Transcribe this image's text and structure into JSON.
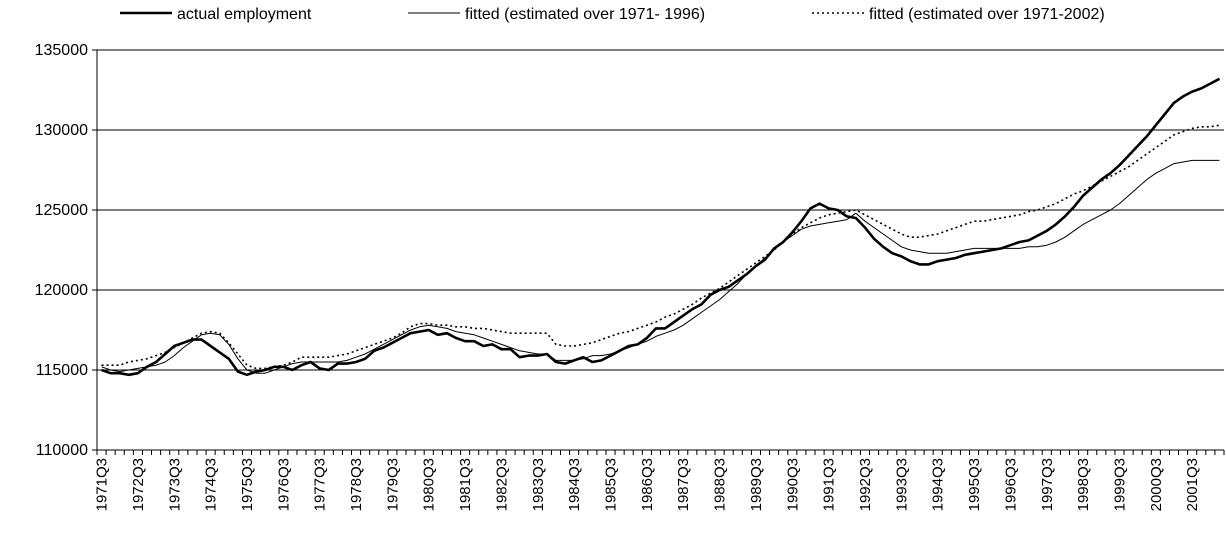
{
  "chart_data": {
    "type": "line",
    "categories": [
      "1971Q3",
      null,
      null,
      null,
      "1972Q3",
      null,
      null,
      null,
      "1973Q3",
      null,
      null,
      null,
      "1974Q3",
      null,
      null,
      null,
      "1975Q3",
      null,
      null,
      null,
      "1976Q3",
      null,
      null,
      null,
      "1977Q3",
      null,
      null,
      null,
      "1978Q3",
      null,
      null,
      null,
      "1979Q3",
      null,
      null,
      null,
      "1980Q3",
      null,
      null,
      null,
      "1981Q3",
      null,
      null,
      null,
      "1982Q3",
      null,
      null,
      null,
      "1983Q3",
      null,
      null,
      null,
      "1984Q3",
      null,
      null,
      null,
      "1985Q3",
      null,
      null,
      null,
      "1986Q3",
      null,
      null,
      null,
      "1987Q3",
      null,
      null,
      null,
      "1988Q3",
      null,
      null,
      null,
      "1989Q3",
      null,
      null,
      null,
      "1990Q3",
      null,
      null,
      null,
      "1991Q3",
      null,
      null,
      null,
      "1992Q3",
      null,
      null,
      null,
      "1993Q3",
      null,
      null,
      null,
      "1994Q3",
      null,
      null,
      null,
      "1995Q3",
      null,
      null,
      null,
      "1996Q3",
      null,
      null,
      null,
      "1997Q3",
      null,
      null,
      null,
      "1998Q3",
      null,
      null,
      null,
      "1999Q3",
      null,
      null,
      null,
      "2000Q3",
      null,
      null,
      null,
      "2001Q3",
      null,
      null,
      null
    ],
    "series": [
      {
        "name": "actual employment",
        "color": "#000000",
        "style": "thick",
        "values": [
          115000,
          114800,
          114800,
          114700,
          114800,
          115200,
          115500,
          116000,
          116500,
          116700,
          116900,
          116900,
          116500,
          116100,
          115700,
          114900,
          114700,
          114900,
          115000,
          115200,
          115200,
          115000,
          115300,
          115500,
          115100,
          115000,
          115400,
          115400,
          115500,
          115700,
          116200,
          116400,
          116700,
          117000,
          117300,
          117400,
          117500,
          117200,
          117300,
          117000,
          116800,
          116800,
          116500,
          116600,
          116300,
          116300,
          115800,
          115900,
          115900,
          116000,
          115500,
          115400,
          115600,
          115800,
          115500,
          115600,
          115900,
          116200,
          116500,
          116600,
          117000,
          117600,
          117600,
          118000,
          118400,
          118800,
          119100,
          119700,
          120000,
          120200,
          120600,
          121000,
          121500,
          121900,
          122600,
          123000,
          123600,
          124300,
          125100,
          125400,
          125100,
          125000,
          124600,
          124500,
          123900,
          123200,
          122700,
          122300,
          122100,
          121800,
          121600,
          121600,
          121800,
          121900,
          122000,
          122200,
          122300,
          122400,
          122500,
          122600,
          122800,
          123000,
          123100,
          123400,
          123700,
          124100,
          124600,
          125200,
          125900,
          126400,
          126900,
          127300,
          127800,
          128400,
          129000,
          129600,
          130300,
          131000,
          131700,
          132100,
          132400,
          132600,
          132900,
          133200
        ]
      },
      {
        "name": "fitted (estimated over 1971- 1996)",
        "color": "#000000",
        "style": "thin",
        "values": [
          115200,
          115000,
          114900,
          115000,
          115100,
          115200,
          115300,
          115500,
          115900,
          116400,
          116800,
          117200,
          117300,
          117200,
          116600,
          115700,
          115000,
          114800,
          114800,
          115000,
          115200,
          115400,
          115500,
          115500,
          115500,
          115500,
          115500,
          115600,
          115800,
          116000,
          116300,
          116600,
          116900,
          117200,
          117500,
          117700,
          117800,
          117700,
          117600,
          117400,
          117300,
          117200,
          117000,
          116800,
          116600,
          116400,
          116200,
          116100,
          116000,
          116000,
          115600,
          115600,
          115600,
          115700,
          115900,
          115900,
          116000,
          116200,
          116400,
          116600,
          116800,
          117100,
          117300,
          117500,
          117800,
          118200,
          118600,
          119000,
          119400,
          119900,
          120400,
          121000,
          121500,
          122000,
          122600,
          123000,
          123400,
          123800,
          124000,
          124100,
          124200,
          124300,
          124400,
          124800,
          124300,
          123900,
          123500,
          123100,
          122700,
          122500,
          122400,
          122300,
          122300,
          122300,
          122400,
          122500,
          122600,
          122600,
          122600,
          122600,
          122600,
          122600,
          122700,
          122700,
          122800,
          123000,
          123300,
          123700,
          124100,
          124400,
          124700,
          125000,
          125400,
          125900,
          126400,
          126900,
          127300,
          127600,
          127900,
          128000,
          128100,
          128100,
          128100,
          128100
        ]
      },
      {
        "name": "fitted (estimated over 1971-2002)",
        "color": "#000000",
        "style": "dotted",
        "values": [
          115300,
          115300,
          115300,
          115500,
          115600,
          115700,
          115900,
          116100,
          116400,
          116700,
          117000,
          117300,
          117400,
          117300,
          116700,
          116000,
          115300,
          115100,
          115100,
          115200,
          115300,
          115500,
          115800,
          115800,
          115800,
          115800,
          115900,
          116000,
          116200,
          116400,
          116600,
          116800,
          117000,
          117300,
          117700,
          117900,
          117900,
          117800,
          117800,
          117700,
          117700,
          117600,
          117600,
          117500,
          117400,
          117300,
          117300,
          117300,
          117300,
          117300,
          116600,
          116500,
          116500,
          116600,
          116700,
          116900,
          117100,
          117300,
          117400,
          117600,
          117800,
          118000,
          118300,
          118500,
          118800,
          119100,
          119500,
          119800,
          120100,
          120500,
          120900,
          121300,
          121700,
          122100,
          122500,
          123000,
          123500,
          123900,
          124200,
          124500,
          124700,
          124800,
          124900,
          125000,
          124700,
          124400,
          124100,
          123800,
          123500,
          123300,
          123300,
          123400,
          123500,
          123700,
          123900,
          124100,
          124300,
          124300,
          124400,
          124500,
          124600,
          124700,
          124900,
          125000,
          125200,
          125400,
          125700,
          126000,
          126200,
          126500,
          126800,
          127100,
          127400,
          127700,
          128100,
          128500,
          128900,
          129300,
          129700,
          129900,
          130100,
          130200,
          130200,
          130300
        ]
      }
    ],
    "ylim": [
      110000,
      135000
    ],
    "yticks": [
      110000,
      115000,
      120000,
      125000,
      130000,
      135000
    ],
    "grid": true,
    "legend": "top"
  }
}
